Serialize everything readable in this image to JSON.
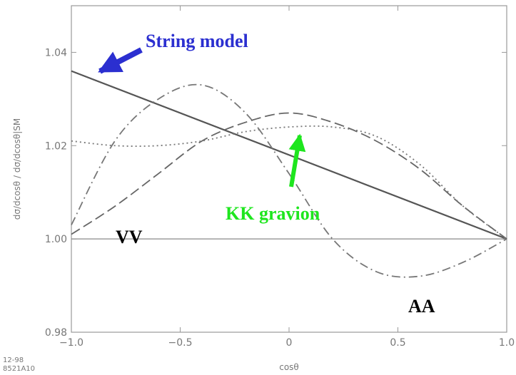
{
  "chart_data": {
    "type": "line",
    "xlabel": "cosθ",
    "ylabel": "dσ/dcosθ / dσ/dcosθ|SM",
    "xlim": [
      -1.0,
      1.0
    ],
    "ylim": [
      0.98,
      1.05
    ],
    "xticks": [
      "−1.0",
      "−0.5",
      "0",
      "0.5",
      "1.0"
    ],
    "xtick_values": [
      -1.0,
      -0.5,
      0,
      0.5,
      1.0
    ],
    "yticks": [
      "0.98",
      "1.00",
      "1.02",
      "1.04"
    ],
    "ytick_values": [
      0.98,
      1.0,
      1.02,
      1.04
    ],
    "grid": false,
    "series": [
      {
        "name": "String model",
        "style": "solid",
        "x": [
          -1.0,
          1.0
        ],
        "y": [
          1.036,
          1.0
        ]
      },
      {
        "name": "VV",
        "style": "solid-thin",
        "x": [
          -1.0,
          1.0
        ],
        "y": [
          1.0,
          1.0
        ]
      },
      {
        "style": "dash-dot",
        "x": [
          -1.0,
          -0.8,
          -0.6,
          -0.4,
          -0.2,
          0.0,
          0.2,
          0.4,
          0.6,
          0.8,
          1.0
        ],
        "y": [
          1.003,
          1.021,
          1.03,
          1.033,
          1.027,
          1.014,
          1.0,
          0.993,
          0.992,
          0.995,
          1.0
        ]
      },
      {
        "style": "dashed",
        "x": [
          -1.0,
          -0.8,
          -0.6,
          -0.4,
          -0.2,
          0.0,
          0.2,
          0.4,
          0.6,
          0.8,
          1.0
        ],
        "y": [
          1.001,
          1.007,
          1.014,
          1.021,
          1.025,
          1.027,
          1.025,
          1.021,
          1.015,
          1.007,
          1.0
        ]
      },
      {
        "style": "dotted",
        "x": [
          -1.0,
          -0.8,
          -0.6,
          -0.4,
          -0.2,
          0.0,
          0.2,
          0.4,
          0.6,
          0.8,
          1.0
        ],
        "y": [
          1.021,
          1.02,
          1.02,
          1.021,
          1.023,
          1.024,
          1.024,
          1.022,
          1.016,
          1.007,
          1.0
        ]
      }
    ],
    "annotations": {
      "string_model": "String model",
      "kk_gravion": "KK gravion",
      "vv": "VV",
      "aa": "AA"
    },
    "colors": {
      "string_arrow": "#2b2fd0",
      "kk_arrow": "#1ee61e",
      "curves": "#666666",
      "axes": "#999999"
    },
    "stamp": [
      "12-98",
      "8521A10"
    ]
  }
}
